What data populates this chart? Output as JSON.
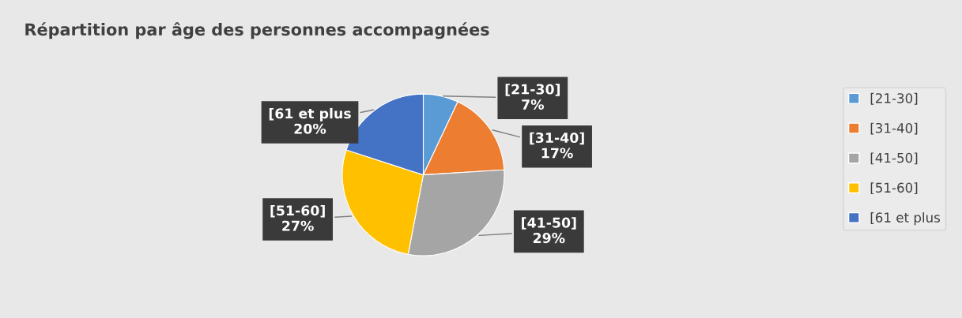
{
  "chart_data": {
    "type": "pie",
    "title": "Répartition par âge des personnes accompagnées",
    "categories": [
      "[21-30]",
      "[31-40]",
      "[41-50]",
      "[51-60]",
      "[61 et plus"
    ],
    "values": [
      7,
      17,
      29,
      27,
      20
    ],
    "colors": [
      "#5b9bd5",
      "#ed7d31",
      "#a5a5a5",
      "#ffc000",
      "#4472c4"
    ],
    "value_labels": [
      "7%",
      "17%",
      "29%",
      "27%",
      "20%"
    ],
    "legend": "right"
  }
}
